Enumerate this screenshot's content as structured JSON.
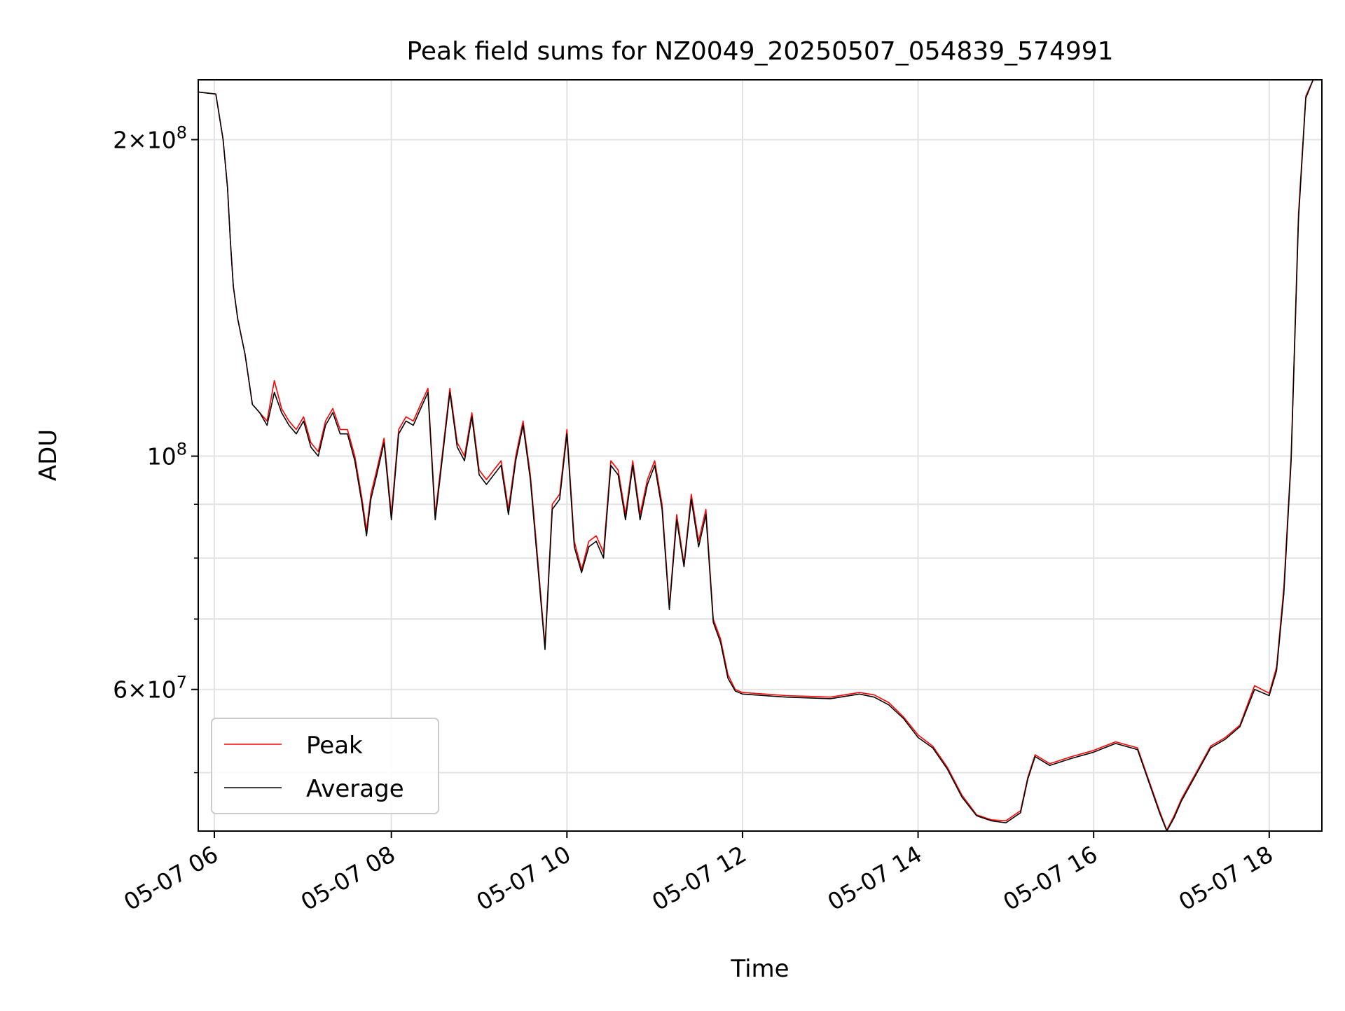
{
  "chart_data": {
    "type": "line",
    "title": "Peak field sums for NZ0049_20250507_054839_574991",
    "xlabel": "Time",
    "ylabel": "ADU",
    "x_unit": "time (2025-05-07, hh:mm)",
    "x_axis": {
      "range": [
        "05:48",
        "18:36"
      ],
      "ticks": [
        "05:59",
        "08:00",
        "10:00",
        "12:00",
        "14:00",
        "16:00",
        "18:00"
      ],
      "tick_labels": [
        "05-07 06",
        "05-07 08",
        "05-07 10",
        "05-07 12",
        "05-07 14",
        "05-07 16",
        "05-07 18"
      ]
    },
    "y_axis": {
      "scale": "log",
      "range": [
        44000000,
        228000000
      ],
      "major_ticks": [
        {
          "value": 200000000,
          "base": "2×10",
          "exp": "8"
        },
        {
          "value": 100000000,
          "base": "10",
          "exp": "8"
        },
        {
          "value": 60000000,
          "base": "6×10",
          "exp": "7"
        }
      ],
      "minor_ticks": [
        50000000,
        70000000,
        80000000,
        90000000
      ]
    },
    "grid": true,
    "legend": {
      "position": "lower-left",
      "entries": [
        "Peak",
        "Average"
      ]
    },
    "colors": {
      "Peak": "#ff0000",
      "Average": "#000000"
    },
    "x": [
      "05:48",
      "06:00",
      "06:05",
      "06:08",
      "06:10",
      "06:12",
      "06:15",
      "06:20",
      "06:25",
      "06:30",
      "06:35",
      "06:40",
      "06:45",
      "06:50",
      "06:55",
      "07:00",
      "07:05",
      "07:10",
      "07:15",
      "07:20",
      "07:25",
      "07:30",
      "07:35",
      "07:40",
      "07:43",
      "07:46",
      "07:50",
      "07:55",
      "08:00",
      "08:05",
      "08:10",
      "08:15",
      "08:20",
      "08:25",
      "08:30",
      "08:35",
      "08:40",
      "08:45",
      "08:50",
      "08:55",
      "09:00",
      "09:05",
      "09:10",
      "09:15",
      "09:20",
      "09:25",
      "09:30",
      "09:35",
      "09:40",
      "09:45",
      "09:50",
      "09:55",
      "10:00",
      "10:05",
      "10:10",
      "10:15",
      "10:20",
      "10:25",
      "10:30",
      "10:35",
      "10:40",
      "10:45",
      "10:50",
      "10:55",
      "11:00",
      "11:05",
      "11:10",
      "11:15",
      "11:20",
      "11:25",
      "11:30",
      "11:35",
      "11:40",
      "11:45",
      "11:50",
      "11:55",
      "12:00",
      "12:30",
      "13:00",
      "13:20",
      "13:30",
      "13:40",
      "13:50",
      "14:00",
      "14:10",
      "14:20",
      "14:30",
      "14:40",
      "14:50",
      "15:00",
      "15:10",
      "15:15",
      "15:20",
      "15:30",
      "15:45",
      "16:00",
      "16:15",
      "16:30",
      "16:45",
      "16:50",
      "16:55",
      "17:00",
      "17:10",
      "17:20",
      "17:30",
      "17:40",
      "17:50",
      "18:00",
      "18:05",
      "18:10",
      "18:15",
      "18:20",
      "18:25",
      "18:30",
      "18:36"
    ],
    "series": [
      {
        "name": "Peak",
        "values": [
          222000000,
          221000000,
          200000000,
          180000000,
          160000000,
          145000000,
          135000000,
          125000000,
          112000000,
          110000000,
          108000000,
          118000000,
          111000000,
          108000000,
          106000000,
          109000000,
          103000000,
          101000000,
          108000000,
          111000000,
          106000000,
          106000000,
          100000000,
          91000000,
          85000000,
          92000000,
          97000000,
          104000000,
          88000000,
          106000000,
          109000000,
          108000000,
          112000000,
          116000000,
          88000000,
          101000000,
          116000000,
          103000000,
          100000000,
          110000000,
          97000000,
          95000000,
          97000000,
          99000000,
          89000000,
          100000000,
          108000000,
          96000000,
          80000000,
          66000000,
          90000000,
          92000000,
          106000000,
          83000000,
          78000000,
          83000000,
          84000000,
          81000000,
          99000000,
          97000000,
          88000000,
          99000000,
          88000000,
          95000000,
          99000000,
          90000000,
          72000000,
          88000000,
          79000000,
          92000000,
          83000000,
          89000000,
          70000000,
          67000000,
          62000000,
          60000000,
          59600000,
          59200000,
          59000000,
          59600000,
          59300000,
          58300000,
          56500000,
          54300000,
          53000000,
          50600000,
          47600000,
          45600000,
          45100000,
          45000000,
          46000000,
          49500000,
          52000000,
          51000000,
          51800000,
          52500000,
          53500000,
          52800000,
          46000000,
          44100000,
          45500000,
          47200000,
          50000000,
          53000000,
          54000000,
          55500000,
          60500000,
          59500000,
          63000000,
          75000000,
          100000000,
          170000000,
          220000000,
          228000000,
          228000000
        ]
      },
      {
        "name": "Average",
        "values": [
          222000000,
          221000000,
          200000000,
          180000000,
          160000000,
          145000000,
          135000000,
          125000000,
          112000000,
          110000000,
          107000000,
          115000000,
          110000000,
          107000000,
          105000000,
          108000000,
          102000000,
          100000000,
          107000000,
          110000000,
          105000000,
          105000000,
          99000000,
          90000000,
          84000000,
          91000000,
          96000000,
          103000000,
          87000000,
          105000000,
          108000000,
          107000000,
          111000000,
          115000000,
          87000000,
          100000000,
          115000000,
          102000000,
          99000000,
          109000000,
          96000000,
          94000000,
          96000000,
          98000000,
          88000000,
          99000000,
          107000000,
          95000000,
          79000000,
          65500000,
          89000000,
          91000000,
          105000000,
          82000000,
          77500000,
          82000000,
          83000000,
          80000000,
          98000000,
          96000000,
          87000000,
          98000000,
          87000000,
          94000000,
          98000000,
          89000000,
          71500000,
          87000000,
          78500000,
          91000000,
          82000000,
          88000000,
          69500000,
          66500000,
          61500000,
          59800000,
          59400000,
          59000000,
          58800000,
          59400000,
          59000000,
          58000000,
          56300000,
          54000000,
          52800000,
          50400000,
          47400000,
          45500000,
          45000000,
          44800000,
          45800000,
          49300000,
          51800000,
          50800000,
          51600000,
          52300000,
          53300000,
          52600000,
          45800000,
          44000000,
          45300000,
          47000000,
          49800000,
          52800000,
          53800000,
          55300000,
          60000000,
          59200000,
          62500000,
          74000000,
          99000000,
          168000000,
          219000000,
          228000000,
          228000000
        ]
      }
    ]
  }
}
